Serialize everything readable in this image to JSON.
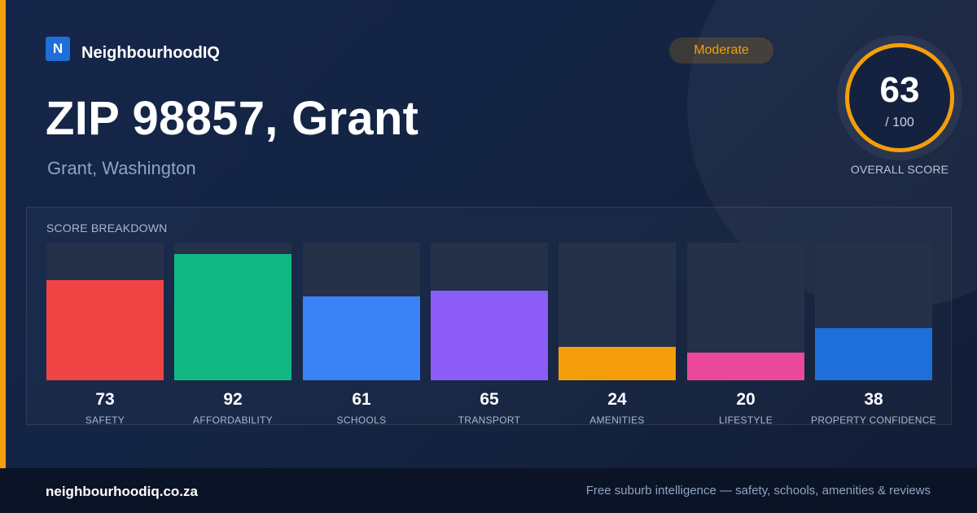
{
  "brand": {
    "logo_letter": "N",
    "name": "NeighbourhoodIQ"
  },
  "header": {
    "title": "ZIP 98857, Grant",
    "subtitle": "Grant, Washington"
  },
  "badge": {
    "label": "Moderate",
    "color": "#f59e0b"
  },
  "overall": {
    "value": "63",
    "max": "/ 100",
    "label": "OVERALL SCORE",
    "ring_color": "#f59e0b"
  },
  "breakdown": {
    "title": "SCORE BREAKDOWN",
    "max_score": 100,
    "items": [
      {
        "label": "SAFETY",
        "value": 73,
        "color": "#ef4444"
      },
      {
        "label": "AFFORDABILITY",
        "value": 92,
        "color": "#10b981"
      },
      {
        "label": "SCHOOLS",
        "value": 61,
        "color": "#3b82f6"
      },
      {
        "label": "TRANSPORT",
        "value": 65,
        "color": "#8b5cf6"
      },
      {
        "label": "AMENITIES",
        "value": 24,
        "color": "#f59e0b"
      },
      {
        "label": "LIFESTYLE",
        "value": 20,
        "color": "#ec4899"
      },
      {
        "label": "PROPERTY CONFIDENCE",
        "value": 38,
        "color": "#1e6fd9"
      }
    ]
  },
  "footer": {
    "url": "neighbourhoodiq.co.za",
    "tagline": "Free suburb intelligence — safety, schools, amenities & reviews"
  }
}
